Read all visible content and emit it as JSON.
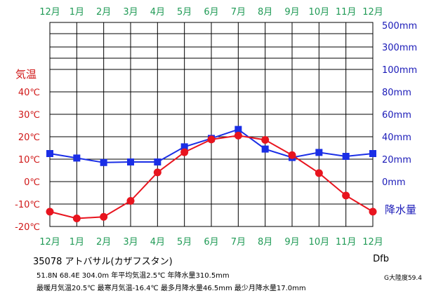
{
  "station": {
    "code": "35078",
    "name": "アトバサル(カザフスタン)",
    "line1": "51.8N  68.4E  304.0m 年平均気温2.5℃  年降水量310.5mm",
    "line2": "最暖月気温20.5℃ 最寒月気温-16.4℃ 最多月降水量46.5mm 最少月降水量17.0mm",
    "climate_class": "Dfb",
    "continentality": "G大陸度59.4"
  },
  "colors": {
    "temperature": "#e8141e",
    "precipitation": "#1a2ee6",
    "month_labels": "#1f9a55",
    "left_axis": "#d01818",
    "right_axis": "#1a1ab8",
    "grid": "#000000"
  },
  "chart_data": {
    "type": "line",
    "categories": [
      "12月",
      "1月",
      "2月",
      "3月",
      "4月",
      "5月",
      "6月",
      "7月",
      "8月",
      "9月",
      "10月",
      "11月",
      "12月"
    ],
    "series": [
      {
        "name": "気温",
        "axis": "left",
        "unit": "℃",
        "marker": "circle",
        "values": [
          -13.4,
          -16.4,
          -15.7,
          -8.6,
          4.1,
          13.1,
          18.8,
          20.5,
          18.6,
          11.8,
          3.8,
          -6.2,
          -13.4
        ]
      },
      {
        "name": "降水量",
        "axis": "right",
        "unit": "mm",
        "marker": "square",
        "values": [
          25.0,
          21.0,
          17.0,
          17.5,
          17.5,
          31.0,
          38.5,
          46.5,
          29.0,
          21.5,
          26.0,
          22.5,
          25.0
        ]
      }
    ],
    "left_axis": {
      "title": "気温",
      "ylim": [
        -20,
        40
      ],
      "ticks": [
        -20,
        -10,
        0,
        10,
        20,
        30,
        40
      ],
      "tick_labels": [
        "-20℃",
        "-10℃",
        "0℃",
        "10℃",
        "20℃",
        "30℃",
        "40℃"
      ]
    },
    "right_axis": {
      "title": "降水量",
      "ylim": [
        -40,
        80
      ],
      "ticks": [
        0,
        20,
        40,
        60,
        80
      ],
      "tick_labels": [
        "0mm",
        "20mm",
        "40mm",
        "60mm",
        "80mm"
      ],
      "upper_ticks": [
        100,
        300,
        500
      ],
      "upper_tick_labels": [
        "100mm",
        "300mm",
        "500mm"
      ]
    },
    "grid": true
  }
}
